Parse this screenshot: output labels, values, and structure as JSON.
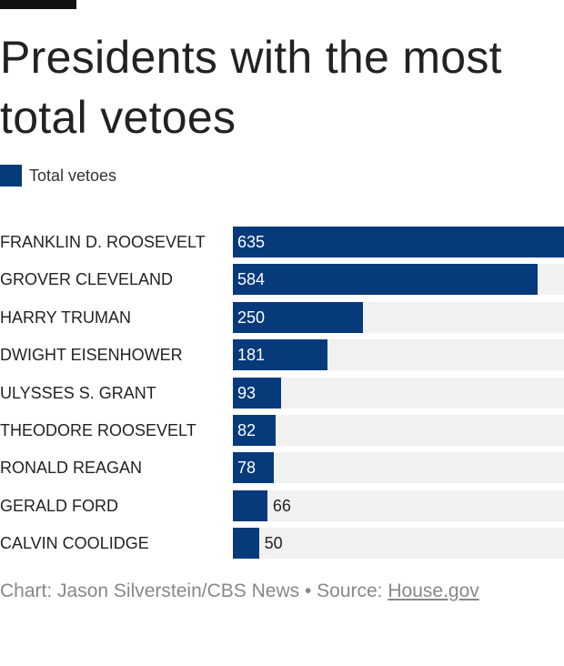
{
  "chart_data": {
    "type": "bar",
    "orientation": "horizontal",
    "title": "Presidents with the most total vetoes",
    "legend": [
      "Total vetoes"
    ],
    "legend_placement": "top-left",
    "categories": [
      "FRANKLIN D. ROOSEVELT",
      "GROVER CLEVELAND",
      "HARRY TRUMAN",
      "DWIGHT EISENHOWER",
      "ULYSSES S. GRANT",
      "THEODORE ROOSEVELT",
      "RONALD REAGAN",
      "GERALD FORD",
      "CALVIN COOLIDGE"
    ],
    "series": [
      {
        "name": "Total vetoes",
        "values": [
          635,
          584,
          250,
          181,
          93,
          82,
          78,
          66,
          50
        ]
      }
    ],
    "xlim": [
      0,
      635
    ],
    "grid": false
  },
  "colors": {
    "bar": "#063a7b",
    "track": "#f1f1f1"
  },
  "footer": {
    "credit": "Chart: Jason Silverstein/CBS News • Source: ",
    "source_link": "House.gov"
  }
}
